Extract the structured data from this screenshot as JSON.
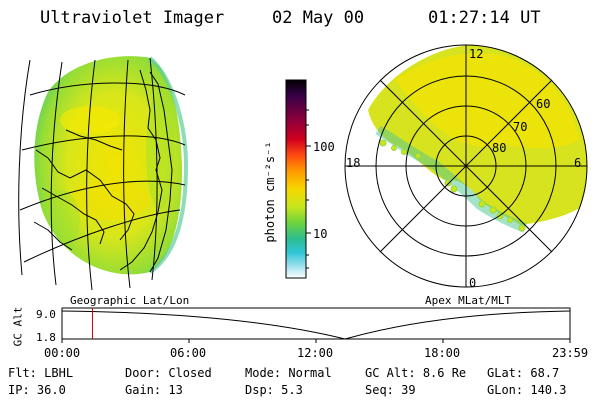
{
  "header": {
    "title": "Ultraviolet Imager",
    "date": "02 May 00",
    "time": "01:27:14 UT"
  },
  "colorbar": {
    "unit_label": "photon cm⁻²s⁻¹",
    "ticks": [
      "100",
      "10"
    ],
    "colors": [
      "#000000",
      "#3a0048",
      "#8b003c",
      "#d0001e",
      "#ff4a10",
      "#ff9a00",
      "#f6d700",
      "#c8e61e",
      "#6ed33c",
      "#2ebd8e",
      "#2fc4d6",
      "#9ee0ec",
      "#ffffff"
    ]
  },
  "polar_plot": {
    "mlt_labels": {
      "top": "12",
      "left": "18",
      "right": "6",
      "bottom": "0"
    },
    "lat_labels": [
      "60",
      "70",
      "80"
    ]
  },
  "panel_labels": {
    "left": "Geographic Lat/Lon",
    "right": "Apex MLat/MLT"
  },
  "alt_plot": {
    "axis_title": "GC Alt",
    "y_ticks": [
      "9.0",
      "1.8"
    ],
    "x_ticks": [
      "00:00",
      "06:00",
      "12:00",
      "18:00",
      "23:59"
    ],
    "current_time_fraction": 0.06
  },
  "info": {
    "row1": [
      {
        "key": "Flt:",
        "value": "LBHL"
      },
      {
        "key": "Door:",
        "value": "Closed"
      },
      {
        "key": "Mode:",
        "value": "Normal"
      },
      {
        "key": "GC Alt:",
        "value": "8.6 Re"
      },
      {
        "key": "GLat:",
        "value": "68.7"
      }
    ],
    "row2": [
      {
        "key": "IP:",
        "value": "36.0"
      },
      {
        "key": "Gain:",
        "value": "13"
      },
      {
        "key": "Dsp:",
        "value": "5.3"
      },
      {
        "key": "Seq:",
        "value": "39"
      },
      {
        "key": "GLon:",
        "value": "140.3"
      }
    ]
  }
}
